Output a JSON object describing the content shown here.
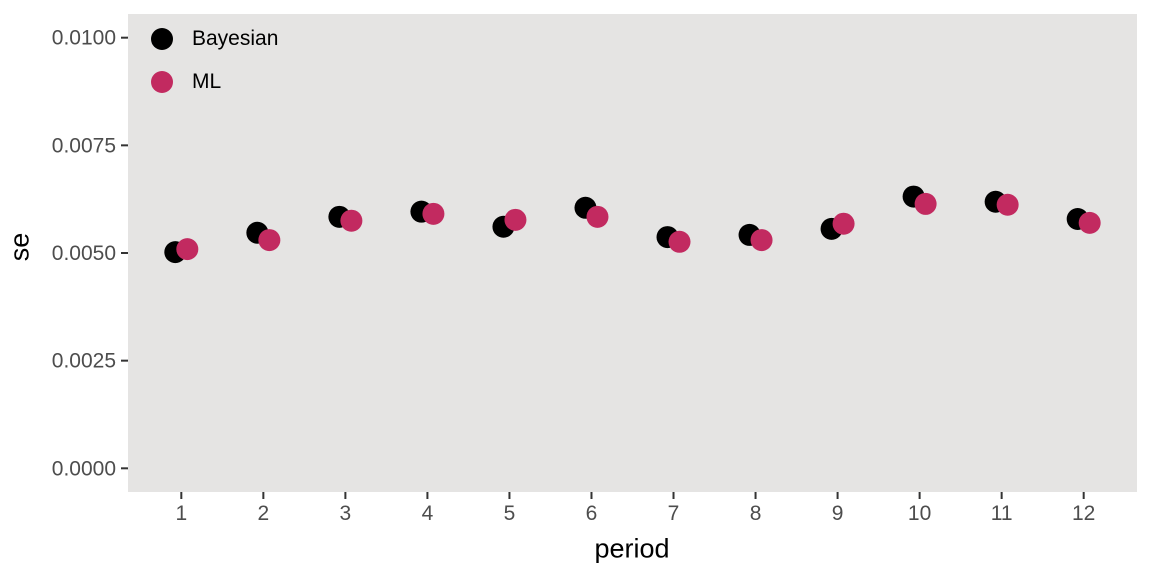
{
  "chart_data": {
    "type": "scatter",
    "title": "",
    "xlabel": "period",
    "ylabel": "se",
    "x": [
      1,
      2,
      3,
      4,
      5,
      6,
      7,
      8,
      9,
      10,
      11,
      12
    ],
    "series": [
      {
        "name": "Bayesian",
        "color": "#000000",
        "values": [
          0.00502,
          0.00547,
          0.00584,
          0.00596,
          0.00561,
          0.00605,
          0.00537,
          0.00542,
          0.00556,
          0.00631,
          0.00619,
          0.00579
        ]
      },
      {
        "name": "ML",
        "color": "#C22A60",
        "values": [
          0.00509,
          0.0053,
          0.00575,
          0.00591,
          0.00577,
          0.00584,
          0.00526,
          0.0053,
          0.00568,
          0.00614,
          0.00612,
          0.0057
        ]
      }
    ],
    "x_tick_labels": [
      "1",
      "2",
      "3",
      "4",
      "5",
      "6",
      "7",
      "8",
      "9",
      "10",
      "11",
      "12"
    ],
    "y_tick_labels": [
      "0.0000",
      "0.0025",
      "0.0050",
      "0.0075",
      "0.0100"
    ],
    "y_tick_values": [
      0,
      0.0025,
      0.005,
      0.0075,
      0.01
    ],
    "xlim": [
      0.35,
      12.65
    ],
    "ylim": [
      -0.00055,
      0.01055
    ],
    "grid": false,
    "legend_position": "inside-top-left",
    "panel_background": "#E5E4E3",
    "tick_label_color": "#4D4D4D",
    "tick_mark_color": "#333333"
  }
}
